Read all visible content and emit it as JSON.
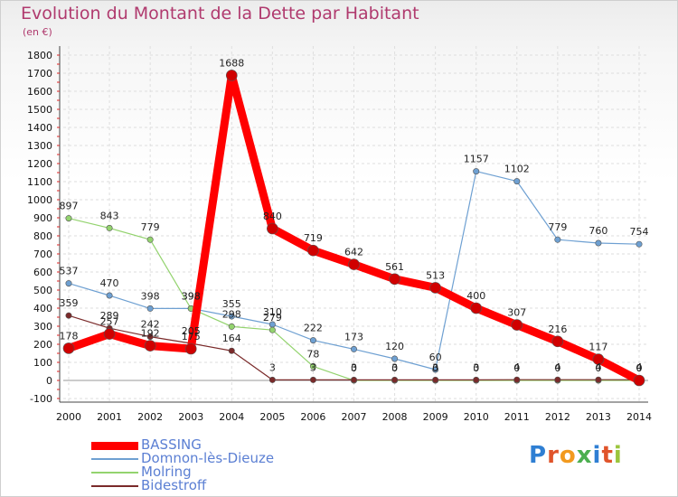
{
  "header": {
    "title": "Evolution du Montant de la Dette par Habitant",
    "subtitle": "(en €)"
  },
  "logo": {
    "text": "Proxiti"
  },
  "chart_data": {
    "type": "line",
    "title": "Evolution du Montant de la Dette par Habitant",
    "subtitle": "(en €)",
    "xlabel": "",
    "ylabel": "",
    "x": [
      "2000",
      "2001",
      "2002",
      "2003",
      "2004",
      "2005",
      "2006",
      "2007",
      "2008",
      "2009",
      "2010",
      "2011",
      "2012",
      "2013",
      "2014"
    ],
    "ylim": [
      -100,
      1800
    ],
    "yticks": [
      -100,
      0,
      100,
      200,
      300,
      400,
      500,
      600,
      700,
      800,
      900,
      1000,
      1100,
      1200,
      1300,
      1400,
      1500,
      1600,
      1700,
      1800
    ],
    "grid": true,
    "legend_position": "bottom-left",
    "series": [
      {
        "name": "BASSING",
        "color": "#ff0000",
        "width": 9,
        "values": [
          178,
          257,
          192,
          175,
          1688,
          840,
          719,
          642,
          561,
          513,
          400,
          307,
          216,
          117,
          0
        ]
      },
      {
        "name": "Domnon-lès-Dieuze",
        "color": "#6ea0d2",
        "width": 1.2,
        "values": [
          537,
          470,
          398,
          398,
          355,
          310,
          222,
          173,
          120,
          60,
          1157,
          1102,
          779,
          760,
          754
        ]
      },
      {
        "name": "Molring",
        "color": "#93d36e",
        "width": 1.2,
        "values": [
          897,
          843,
          779,
          398,
          298,
          279,
          78,
          0,
          0,
          0,
          0,
          0,
          0,
          0,
          0
        ]
      },
      {
        "name": "Bidestroff",
        "color": "#7a2a2a",
        "width": 1.2,
        "values": [
          359,
          289,
          242,
          205,
          164,
          3,
          3,
          3,
          3,
          3,
          3,
          4,
          4,
          4,
          4
        ]
      }
    ]
  }
}
